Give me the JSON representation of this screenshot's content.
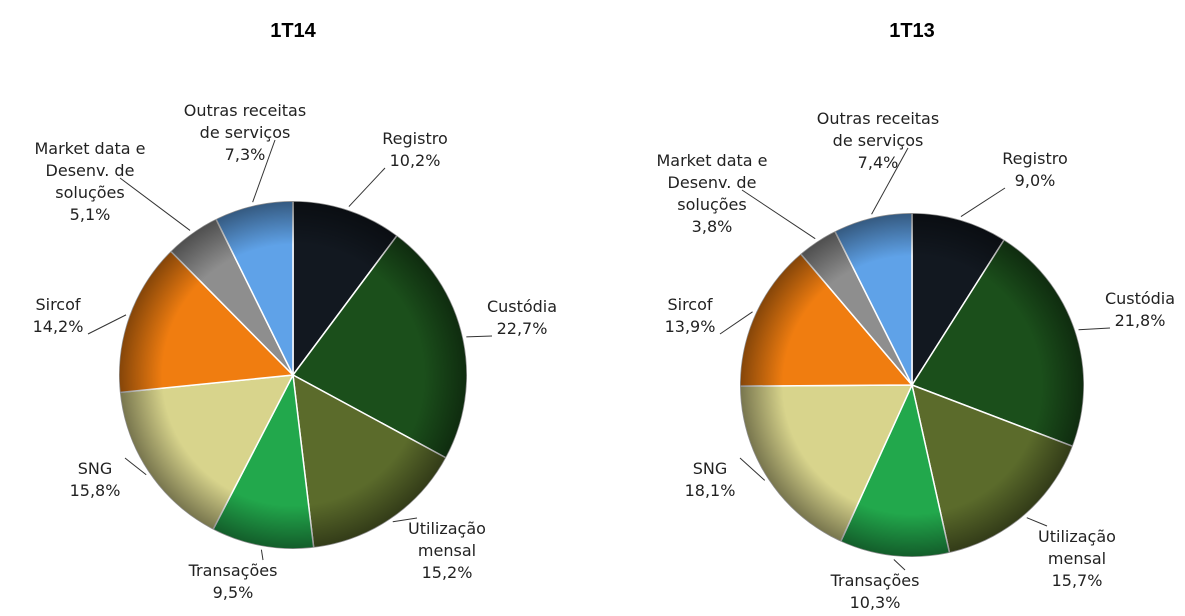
{
  "chart_data": [
    {
      "type": "pie",
      "title": "1T14",
      "categories": [
        "Registro",
        "Custódia",
        "Utilização\nmensal",
        "Transações",
        "SNG",
        "Sircof",
        "Market data e\nDesenv. de\nsoluções",
        "Outras receitas\nde serviços"
      ],
      "values": [
        10.2,
        22.7,
        15.2,
        9.5,
        15.8,
        14.2,
        5.1,
        7.3
      ],
      "value_labels": [
        "10,2%",
        "22,7%",
        "15,2%",
        "9,5%",
        "15,8%",
        "14,2%",
        "5,1%",
        "7,3%"
      ],
      "colors": [
        "#121820",
        "#1b4f1b",
        "#5b6b2b",
        "#22a84c",
        "#d8d48c",
        "#f07d10",
        "#8e8e8e",
        "#5fa2e8"
      ]
    },
    {
      "type": "pie",
      "title": "1T13",
      "categories": [
        "Registro",
        "Custódia",
        "Utilização\nmensal",
        "Transações",
        "SNG",
        "Sircof",
        "Market data e\nDesenv. de\nsoluções",
        "Outras receitas\nde serviços"
      ],
      "values": [
        9.0,
        21.8,
        15.7,
        10.3,
        18.1,
        13.9,
        3.8,
        7.4
      ],
      "value_labels": [
        "9,0%",
        "21,8%",
        "15,7%",
        "10,3%",
        "18,1%",
        "13,9%",
        "3,8%",
        "7,4%"
      ],
      "colors": [
        "#121820",
        "#1b4f1b",
        "#5b6b2b",
        "#22a84c",
        "#d8d48c",
        "#f07d10",
        "#8e8e8e",
        "#5fa2e8"
      ]
    }
  ]
}
